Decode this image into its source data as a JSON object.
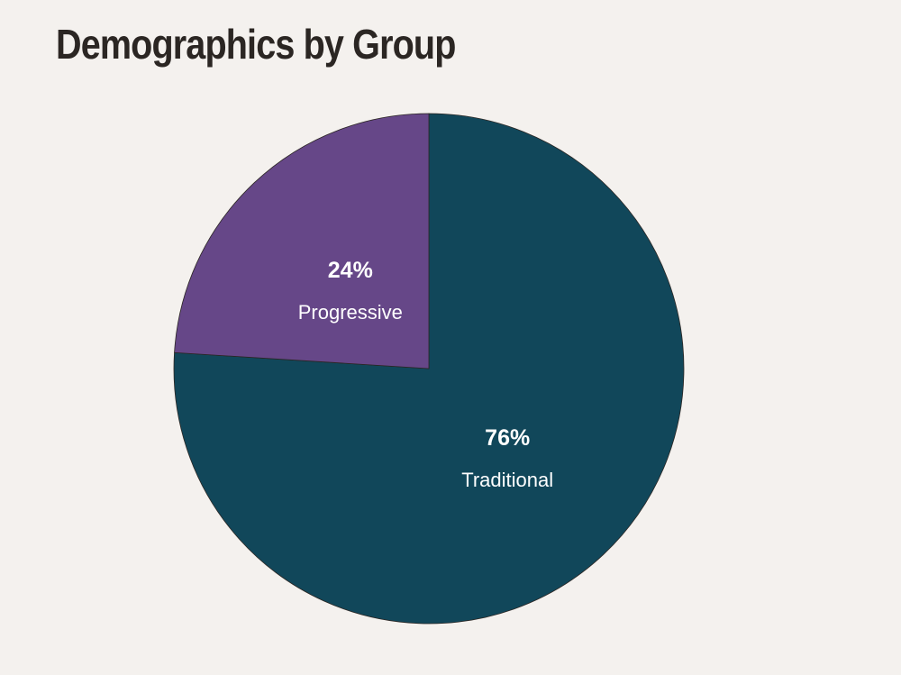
{
  "chart_data": {
    "type": "pie",
    "title": "Demographics by Group",
    "slices": [
      {
        "label": "Traditional",
        "value": 76,
        "value_label": "76%",
        "color": "#11475a"
      },
      {
        "label": "Progressive",
        "value": 24,
        "value_label": "24%",
        "color": "#664788"
      }
    ],
    "start": "12 o'clock",
    "direction": "clockwise",
    "legend": "none",
    "slice_edge_color": "#2b2623"
  }
}
